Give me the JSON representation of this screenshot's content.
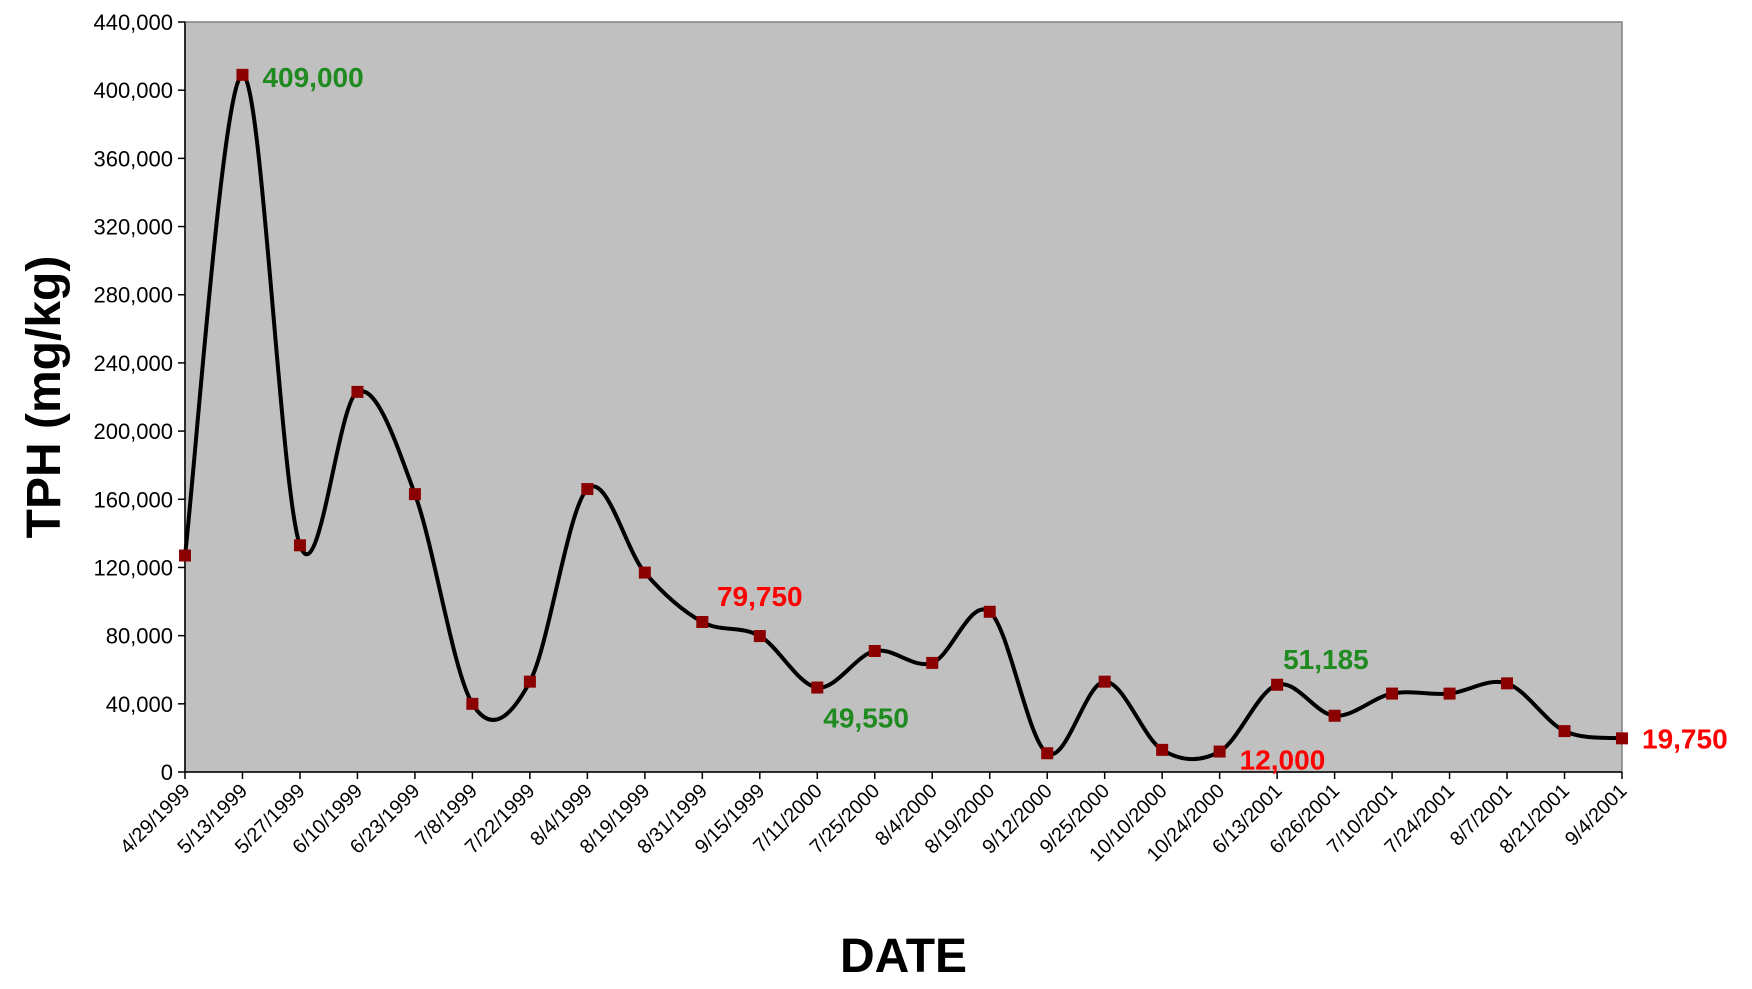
{
  "chart_data": {
    "type": "line",
    "xlabel": "DATE",
    "ylabel": "TPH (mg/kg)",
    "ylim": [
      0,
      440000
    ],
    "yticks": [
      0,
      40000,
      80000,
      120000,
      160000,
      200000,
      240000,
      280000,
      320000,
      360000,
      400000,
      440000
    ],
    "ytick_labels": [
      "0",
      "40,000",
      "80,000",
      "120,000",
      "160,000",
      "200,000",
      "240,000",
      "280,000",
      "320,000",
      "360,000",
      "400,000",
      "440,000"
    ],
    "categories": [
      "4/29/1999",
      "5/13/1999",
      "5/27/1999",
      "6/10/1999",
      "6/23/1999",
      "7/8/1999",
      "7/22/1999",
      "8/4/1999",
      "8/19/1999",
      "8/31/1999",
      "9/15/1999",
      "7/11/2000",
      "7/25/2000",
      "8/4/2000",
      "8/19/2000",
      "9/12/2000",
      "9/25/2000",
      "10/10/2000",
      "10/24/2000",
      "6/13/2001",
      "6/26/2001",
      "7/10/2001",
      "7/24/2001",
      "8/7/2001",
      "8/21/2001",
      "9/4/2001"
    ],
    "series": [
      {
        "values": [
          127000,
          409000,
          133000,
          223000,
          163000,
          40000,
          53000,
          166000,
          117000,
          88000,
          79750,
          49550,
          71000,
          64000,
          94000,
          11000,
          53000,
          13000,
          12000,
          51185,
          33000,
          46000,
          46000,
          52000,
          24000,
          19750
        ],
        "color": "#000000",
        "marker_color": "#8b0000"
      }
    ],
    "annotations": [
      {
        "index": 1,
        "text": "409,000",
        "color": "#1f8a1f"
      },
      {
        "index": 10,
        "text": "79,750",
        "color": "#ff0000"
      },
      {
        "index": 11,
        "text": "49,550",
        "color": "#1f8a1f"
      },
      {
        "index": 18,
        "text": "12,000",
        "color": "#ff0000"
      },
      {
        "index": 19,
        "text": "51,185",
        "color": "#1f8a1f"
      },
      {
        "index": 25,
        "text": "19,750",
        "color": "#ff0000"
      }
    ],
    "plot_background": "#c0c0c0",
    "grid": false,
    "legend": "none"
  }
}
